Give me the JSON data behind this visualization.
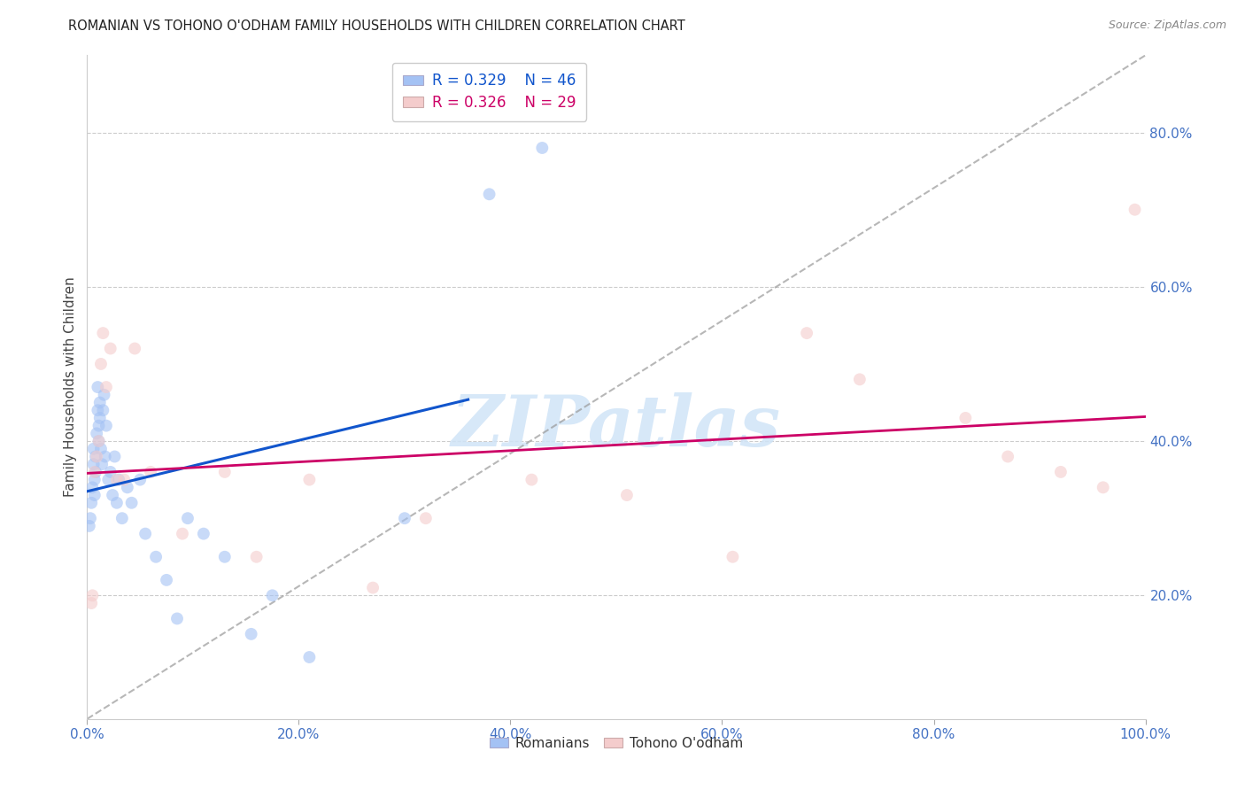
{
  "title": "ROMANIAN VS TOHONO O'ODHAM FAMILY HOUSEHOLDS WITH CHILDREN CORRELATION CHART",
  "source": "Source: ZipAtlas.com",
  "ylabel": "Family Households with Children",
  "legend_r1": "R = 0.329",
  "legend_n1": "N = 46",
  "legend_r2": "R = 0.326",
  "legend_n2": "N = 29",
  "blue_scatter_color": "#a4c2f4",
  "pink_scatter_color": "#f4cccc",
  "blue_line_color": "#1155cc",
  "pink_line_color": "#cc0066",
  "dashed_line_color": "#999999",
  "axis_tick_color": "#4472c4",
  "ylabel_color": "#444444",
  "title_color": "#222222",
  "source_color": "#888888",
  "watermark_color": "#d0e4f7",
  "grid_color": "#cccccc",
  "romanians_x": [
    0.002,
    0.003,
    0.004,
    0.005,
    0.006,
    0.006,
    0.007,
    0.007,
    0.008,
    0.008,
    0.009,
    0.01,
    0.01,
    0.011,
    0.011,
    0.012,
    0.012,
    0.013,
    0.014,
    0.015,
    0.016,
    0.017,
    0.018,
    0.02,
    0.022,
    0.024,
    0.026,
    0.028,
    0.03,
    0.033,
    0.038,
    0.042,
    0.05,
    0.055,
    0.065,
    0.075,
    0.085,
    0.095,
    0.11,
    0.13,
    0.155,
    0.175,
    0.21,
    0.3,
    0.38,
    0.43
  ],
  "romanians_y": [
    0.29,
    0.3,
    0.32,
    0.34,
    0.37,
    0.39,
    0.35,
    0.33,
    0.38,
    0.36,
    0.41,
    0.44,
    0.47,
    0.42,
    0.4,
    0.43,
    0.45,
    0.39,
    0.37,
    0.44,
    0.46,
    0.38,
    0.42,
    0.35,
    0.36,
    0.33,
    0.38,
    0.32,
    0.35,
    0.3,
    0.34,
    0.32,
    0.35,
    0.28,
    0.25,
    0.22,
    0.17,
    0.3,
    0.28,
    0.25,
    0.15,
    0.2,
    0.12,
    0.3,
    0.72,
    0.78
  ],
  "tohono_x": [
    0.004,
    0.005,
    0.007,
    0.009,
    0.011,
    0.013,
    0.015,
    0.018,
    0.022,
    0.028,
    0.035,
    0.045,
    0.06,
    0.09,
    0.13,
    0.16,
    0.21,
    0.27,
    0.32,
    0.42,
    0.51,
    0.61,
    0.68,
    0.73,
    0.83,
    0.87,
    0.92,
    0.96,
    0.99
  ],
  "tohono_y": [
    0.19,
    0.2,
    0.36,
    0.38,
    0.4,
    0.5,
    0.54,
    0.47,
    0.52,
    0.35,
    0.35,
    0.52,
    0.36,
    0.28,
    0.36,
    0.25,
    0.35,
    0.21,
    0.3,
    0.35,
    0.33,
    0.25,
    0.54,
    0.48,
    0.43,
    0.38,
    0.36,
    0.34,
    0.7
  ],
  "xlim": [
    0.0,
    1.0
  ],
  "ylim": [
    0.04,
    0.9
  ],
  "x_ticks": [
    0.0,
    0.2,
    0.4,
    0.6,
    0.8,
    1.0
  ],
  "y_ticks_right": [
    0.2,
    0.4,
    0.6,
    0.8
  ],
  "blue_line_xlim": [
    0.0,
    0.36
  ],
  "scatter_size": 100
}
